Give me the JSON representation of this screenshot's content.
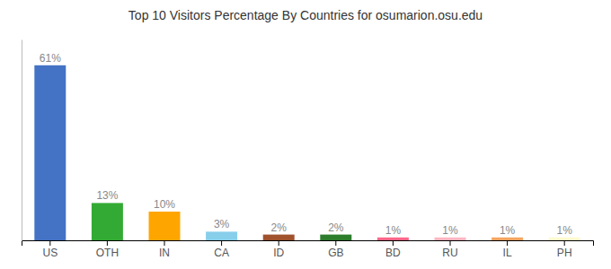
{
  "chart_data": {
    "type": "bar",
    "title": "Top 10 Visitors Percentage By Countries for osumarion.osu.edu",
    "categories": [
      "US",
      "OTH",
      "IN",
      "CA",
      "ID",
      "GB",
      "BD",
      "RU",
      "IL",
      "PH"
    ],
    "values": [
      61,
      13,
      10,
      3,
      2,
      2,
      1,
      1,
      1,
      1
    ],
    "value_labels": [
      "61%",
      "13%",
      "10%",
      "3%",
      "2%",
      "2%",
      "1%",
      "1%",
      "1%",
      "1%"
    ],
    "colors": [
      "#4472C4",
      "#33AA33",
      "#FFA500",
      "#87CEEB",
      "#A0522D",
      "#2D7D2D",
      "#FF6688",
      "#FFB6C1",
      "#F4A460",
      "#FFFACD"
    ],
    "ylim": [
      0,
      70
    ],
    "grid": false,
    "data_labels": true,
    "tick_labels": "x"
  }
}
